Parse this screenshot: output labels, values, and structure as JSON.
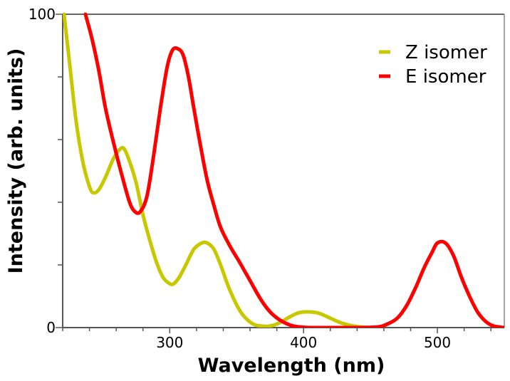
{
  "chart_data": {
    "type": "line",
    "title": "",
    "xlabel": "Wavelength (nm)",
    "ylabel": "Intensity (arb. units)",
    "xlim": [
      220,
      550
    ],
    "ylim": [
      0,
      100
    ],
    "x_major_ticks": [
      300,
      400,
      500
    ],
    "x_minor_tick_step": 20,
    "y_major_ticks": [
      0,
      100
    ],
    "y_minor_tick_step": 20,
    "grid": false,
    "legend_position": "top-right",
    "series": [
      {
        "name": "Z isomer",
        "color": "#c8c800",
        "x": [
          221,
          225,
          230,
          235,
          240,
          243,
          247,
          252,
          258,
          263,
          266,
          270,
          275,
          280,
          285,
          290,
          295,
          300,
          303,
          307,
          312,
          318,
          324,
          328,
          333,
          338,
          343,
          348,
          353,
          358,
          363,
          368,
          375,
          382,
          390,
          397,
          405,
          412,
          420,
          428,
          436,
          445,
          455
        ],
        "values": [
          100,
          85,
          66,
          53,
          45,
          43,
          44,
          48,
          54,
          57,
          57,
          53,
          46,
          36,
          28,
          21,
          16,
          14,
          14,
          16,
          20,
          25,
          27,
          27,
          25,
          20,
          14,
          9,
          5,
          2.5,
          1,
          0.5,
          0.5,
          1.5,
          3.5,
          4.8,
          5,
          4.5,
          3,
          1.5,
          0.6,
          0.1,
          0
        ]
      },
      {
        "name": "E isomer",
        "color": "#ff0000",
        "x": [
          237,
          242,
          247,
          252,
          258,
          264,
          270,
          274,
          278,
          283,
          288,
          293,
          298,
          302,
          306,
          310,
          314,
          318,
          323,
          328,
          333,
          338,
          345,
          352,
          360,
          368,
          375,
          382,
          390,
          397,
          405,
          420,
          440,
          455,
          462,
          470,
          477,
          484,
          490,
          496,
          500,
          506,
          512,
          518,
          524,
          530,
          536,
          542,
          550
        ],
        "values": [
          100,
          92,
          82,
          70,
          59,
          49,
          40,
          37,
          37,
          42,
          55,
          70,
          83,
          88.5,
          89,
          87,
          80,
          70,
          58,
          47,
          39,
          32,
          26,
          21,
          15,
          9,
          5,
          2.5,
          0.8,
          0.2,
          0,
          0,
          0,
          0.2,
          1,
          3,
          7,
          13,
          19,
          24,
          27,
          27,
          23,
          16,
          10,
          5,
          2,
          0.5,
          0
        ]
      }
    ]
  }
}
